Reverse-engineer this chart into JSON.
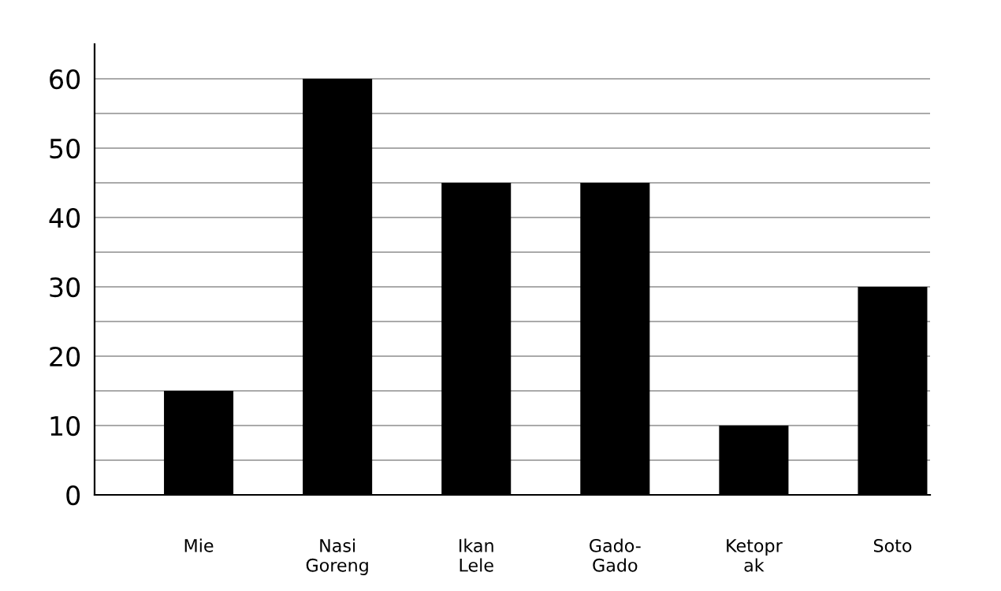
{
  "chart_data": {
    "type": "bar",
    "categories": [
      "Mie",
      "Nasi\nGoreng",
      "Ikan\nLele",
      "Gado-\nGado",
      "Ketopr\nak",
      "Soto"
    ],
    "values": [
      15,
      60,
      45,
      45,
      10,
      30
    ],
    "color": "#000000",
    "ylim": [
      0,
      65
    ],
    "yticks": [
      0,
      {
        "value": 5,
        "label": null
      },
      10,
      {
        "value": 15,
        "label": null
      },
      20,
      {
        "value": 25,
        "label": null
      },
      30,
      {
        "value": 35,
        "label": null
      },
      40,
      {
        "value": 45,
        "label": null
      },
      50,
      {
        "value": 55,
        "label": null
      },
      60
    ],
    "grid": "y"
  }
}
